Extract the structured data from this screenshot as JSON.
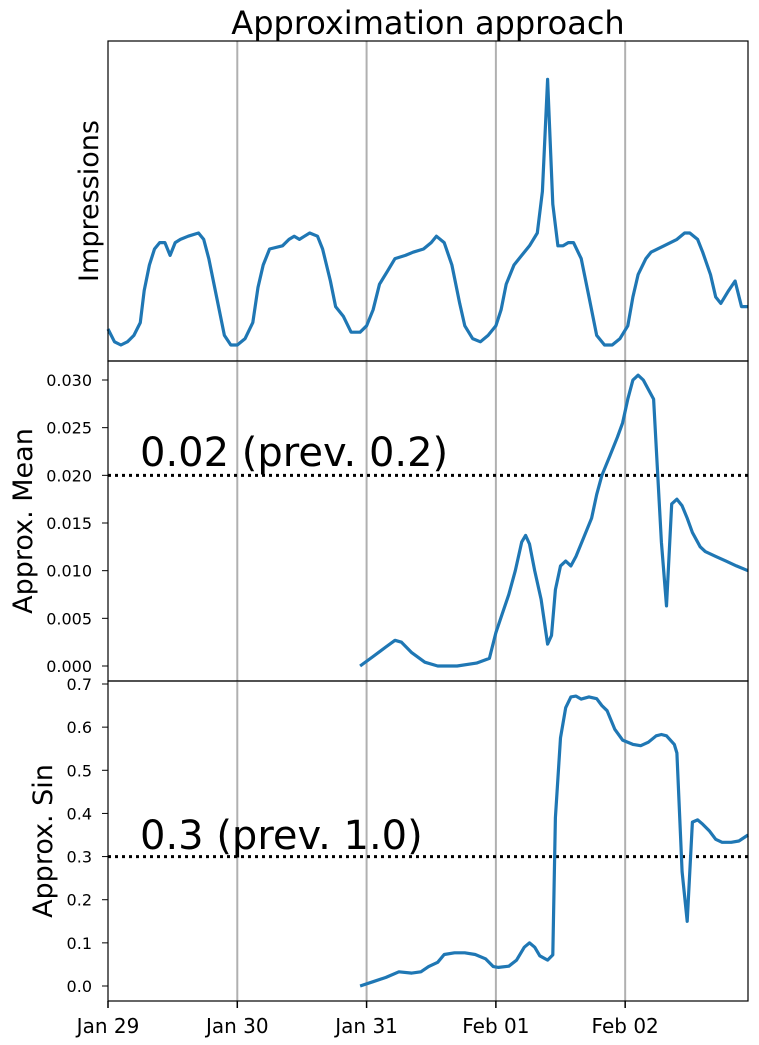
{
  "chart_data": [
    {
      "type": "line",
      "title": "Approximation approach",
      "xlabel": "",
      "ylabel": "Impressions",
      "x_unit": "days after 2019-01-29 00:00",
      "xlim": [
        0,
        4.95
      ],
      "ylim": [
        0,
        1
      ],
      "y_ticks_shown": false,
      "vertical_gridlines_at": [
        1,
        2,
        3,
        4
      ],
      "color": "#1f77b4",
      "points": [
        [
          0.0,
          0.1
        ],
        [
          0.05,
          0.06
        ],
        [
          0.1,
          0.05
        ],
        [
          0.15,
          0.06
        ],
        [
          0.2,
          0.08
        ],
        [
          0.25,
          0.12
        ],
        [
          0.28,
          0.22
        ],
        [
          0.32,
          0.3
        ],
        [
          0.36,
          0.35
        ],
        [
          0.4,
          0.37
        ],
        [
          0.44,
          0.37
        ],
        [
          0.48,
          0.33
        ],
        [
          0.52,
          0.37
        ],
        [
          0.56,
          0.38
        ],
        [
          0.62,
          0.39
        ],
        [
          0.7,
          0.4
        ],
        [
          0.74,
          0.38
        ],
        [
          0.78,
          0.32
        ],
        [
          0.84,
          0.2
        ],
        [
          0.9,
          0.08
        ],
        [
          0.95,
          0.05
        ],
        [
          1.0,
          0.05
        ],
        [
          1.06,
          0.07
        ],
        [
          1.12,
          0.12
        ],
        [
          1.16,
          0.23
        ],
        [
          1.2,
          0.3
        ],
        [
          1.25,
          0.35
        ],
        [
          1.35,
          0.36
        ],
        [
          1.4,
          0.38
        ],
        [
          1.44,
          0.39
        ],
        [
          1.48,
          0.38
        ],
        [
          1.52,
          0.39
        ],
        [
          1.56,
          0.4
        ],
        [
          1.62,
          0.39
        ],
        [
          1.66,
          0.35
        ],
        [
          1.72,
          0.25
        ],
        [
          1.76,
          0.17
        ],
        [
          1.82,
          0.14
        ],
        [
          1.88,
          0.09
        ],
        [
          1.95,
          0.09
        ],
        [
          2.0,
          0.11
        ],
        [
          2.05,
          0.16
        ],
        [
          2.1,
          0.24
        ],
        [
          2.16,
          0.28
        ],
        [
          2.22,
          0.32
        ],
        [
          2.3,
          0.33
        ],
        [
          2.36,
          0.34
        ],
        [
          2.44,
          0.35
        ],
        [
          2.5,
          0.37
        ],
        [
          2.54,
          0.39
        ],
        [
          2.6,
          0.37
        ],
        [
          2.66,
          0.3
        ],
        [
          2.72,
          0.18
        ],
        [
          2.76,
          0.11
        ],
        [
          2.82,
          0.07
        ],
        [
          2.88,
          0.06
        ],
        [
          2.94,
          0.08
        ],
        [
          3.0,
          0.11
        ],
        [
          3.04,
          0.16
        ],
        [
          3.08,
          0.24
        ],
        [
          3.14,
          0.3
        ],
        [
          3.2,
          0.33
        ],
        [
          3.26,
          0.36
        ],
        [
          3.32,
          0.4
        ],
        [
          3.36,
          0.53
        ],
        [
          3.4,
          0.88
        ],
        [
          3.44,
          0.49
        ],
        [
          3.48,
          0.36
        ],
        [
          3.52,
          0.36
        ],
        [
          3.56,
          0.37
        ],
        [
          3.6,
          0.37
        ],
        [
          3.66,
          0.32
        ],
        [
          3.72,
          0.2
        ],
        [
          3.78,
          0.08
        ],
        [
          3.84,
          0.05
        ],
        [
          3.9,
          0.05
        ],
        [
          3.96,
          0.07
        ],
        [
          4.02,
          0.11
        ],
        [
          4.06,
          0.2
        ],
        [
          4.1,
          0.27
        ],
        [
          4.16,
          0.32
        ],
        [
          4.2,
          0.34
        ],
        [
          4.3,
          0.36
        ],
        [
          4.4,
          0.38
        ],
        [
          4.46,
          0.4
        ],
        [
          4.5,
          0.4
        ],
        [
          4.56,
          0.38
        ],
        [
          4.6,
          0.34
        ],
        [
          4.66,
          0.27
        ],
        [
          4.7,
          0.2
        ],
        [
          4.74,
          0.18
        ],
        [
          4.8,
          0.22
        ],
        [
          4.85,
          0.25
        ],
        [
          4.9,
          0.17
        ],
        [
          4.95,
          0.17
        ]
      ]
    },
    {
      "type": "line",
      "xlabel": "",
      "ylabel": "Approx. Mean",
      "x_unit": "days after 2019-01-29 00:00",
      "xlim": [
        0,
        4.95
      ],
      "ylim": [
        0,
        0.032
      ],
      "y_ticks": [
        "0.000",
        "0.005",
        "0.010",
        "0.015",
        "0.020",
        "0.025",
        "0.030"
      ],
      "y_tick_values": [
        0,
        0.005,
        0.01,
        0.015,
        0.02,
        0.025,
        0.03
      ],
      "vertical_gridlines_at": [
        1,
        2,
        3,
        4
      ],
      "threshold": 0.02,
      "annotation": "0.02 (prev. 0.2)",
      "color": "#1f77b4",
      "points": [
        [
          1.95,
          0.0
        ],
        [
          2.05,
          0.001
        ],
        [
          2.15,
          0.002
        ],
        [
          2.22,
          0.0027
        ],
        [
          2.27,
          0.0025
        ],
        [
          2.35,
          0.0014
        ],
        [
          2.45,
          0.0004
        ],
        [
          2.55,
          0.0
        ],
        [
          2.7,
          0.0
        ],
        [
          2.85,
          0.0003
        ],
        [
          2.95,
          0.0008
        ],
        [
          3.0,
          0.0035
        ],
        [
          3.05,
          0.0055
        ],
        [
          3.1,
          0.0075
        ],
        [
          3.15,
          0.01
        ],
        [
          3.2,
          0.013
        ],
        [
          3.23,
          0.0137
        ],
        [
          3.26,
          0.0128
        ],
        [
          3.3,
          0.01
        ],
        [
          3.35,
          0.007
        ],
        [
          3.4,
          0.0023
        ],
        [
          3.43,
          0.0032
        ],
        [
          3.46,
          0.008
        ],
        [
          3.5,
          0.0105
        ],
        [
          3.54,
          0.011
        ],
        [
          3.58,
          0.0105
        ],
        [
          3.62,
          0.0115
        ],
        [
          3.68,
          0.0135
        ],
        [
          3.74,
          0.0155
        ],
        [
          3.78,
          0.018
        ],
        [
          3.82,
          0.02
        ],
        [
          3.88,
          0.022
        ],
        [
          3.94,
          0.024
        ],
        [
          3.98,
          0.0255
        ],
        [
          4.02,
          0.028
        ],
        [
          4.06,
          0.03
        ],
        [
          4.1,
          0.0305
        ],
        [
          4.14,
          0.03
        ],
        [
          4.18,
          0.029
        ],
        [
          4.22,
          0.028
        ],
        [
          4.28,
          0.013
        ],
        [
          4.32,
          0.0063
        ],
        [
          4.36,
          0.017
        ],
        [
          4.4,
          0.0175
        ],
        [
          4.44,
          0.0168
        ],
        [
          4.48,
          0.0155
        ],
        [
          4.52,
          0.014
        ],
        [
          4.58,
          0.0125
        ],
        [
          4.62,
          0.012
        ],
        [
          4.7,
          0.0115
        ],
        [
          4.78,
          0.011
        ],
        [
          4.86,
          0.0105
        ],
        [
          4.95,
          0.01
        ]
      ]
    },
    {
      "type": "line",
      "xlabel": "",
      "ylabel": "Approx. Sin",
      "x_unit": "days after 2019-01-29 00:00",
      "xlim": [
        0,
        4.95
      ],
      "ylim": [
        -0.03,
        0.7
      ],
      "y_ticks": [
        "0.0",
        "0.1",
        "0.2",
        "0.3",
        "0.4",
        "0.5",
        "0.6",
        "0.7"
      ],
      "y_tick_values": [
        0,
        0.1,
        0.2,
        0.3,
        0.4,
        0.5,
        0.6,
        0.7
      ],
      "vertical_gridlines_at": [
        1,
        2,
        3,
        4
      ],
      "threshold": 0.3,
      "annotation": "0.3 (prev. 1.0)",
      "x_ticks": [
        "Jan 29",
        "Jan 30",
        "Jan 31",
        "Feb 01",
        "Feb 02"
      ],
      "x_tick_values": [
        0,
        1,
        2,
        3,
        4
      ],
      "color": "#1f77b4",
      "points": [
        [
          1.95,
          0.0
        ],
        [
          2.05,
          0.01
        ],
        [
          2.15,
          0.02
        ],
        [
          2.25,
          0.033
        ],
        [
          2.35,
          0.03
        ],
        [
          2.42,
          0.033
        ],
        [
          2.48,
          0.045
        ],
        [
          2.55,
          0.055
        ],
        [
          2.6,
          0.073
        ],
        [
          2.68,
          0.077
        ],
        [
          2.76,
          0.077
        ],
        [
          2.84,
          0.073
        ],
        [
          2.92,
          0.063
        ],
        [
          2.98,
          0.045
        ],
        [
          3.02,
          0.043
        ],
        [
          3.1,
          0.046
        ],
        [
          3.16,
          0.06
        ],
        [
          3.22,
          0.09
        ],
        [
          3.26,
          0.1
        ],
        [
          3.3,
          0.09
        ],
        [
          3.34,
          0.07
        ],
        [
          3.4,
          0.06
        ],
        [
          3.44,
          0.072
        ],
        [
          3.46,
          0.39
        ],
        [
          3.5,
          0.575
        ],
        [
          3.54,
          0.645
        ],
        [
          3.58,
          0.67
        ],
        [
          3.62,
          0.672
        ],
        [
          3.66,
          0.665
        ],
        [
          3.72,
          0.67
        ],
        [
          3.78,
          0.666
        ],
        [
          3.82,
          0.65
        ],
        [
          3.86,
          0.638
        ],
        [
          3.92,
          0.595
        ],
        [
          3.98,
          0.57
        ],
        [
          4.06,
          0.56
        ],
        [
          4.12,
          0.557
        ],
        [
          4.18,
          0.565
        ],
        [
          4.24,
          0.58
        ],
        [
          4.28,
          0.583
        ],
        [
          4.32,
          0.58
        ],
        [
          4.38,
          0.56
        ],
        [
          4.4,
          0.54
        ],
        [
          4.44,
          0.265
        ],
        [
          4.48,
          0.15
        ],
        [
          4.52,
          0.38
        ],
        [
          4.56,
          0.385
        ],
        [
          4.6,
          0.375
        ],
        [
          4.65,
          0.36
        ],
        [
          4.7,
          0.34
        ],
        [
          4.75,
          0.333
        ],
        [
          4.82,
          0.333
        ],
        [
          4.88,
          0.336
        ],
        [
          4.95,
          0.35
        ]
      ]
    }
  ]
}
